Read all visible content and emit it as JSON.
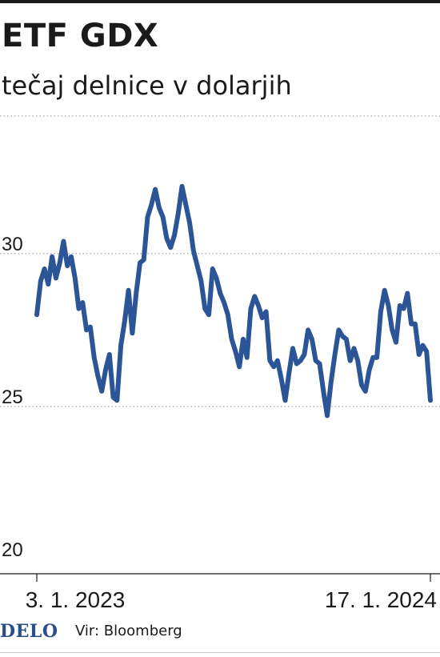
{
  "header": {
    "title": "ETF GDX",
    "subtitle": "tečaj delnice v dolarjih"
  },
  "footer": {
    "logo": "DELO",
    "source": "Vir: Bloomberg"
  },
  "colors": {
    "line": "#2c5597",
    "grid": "#8a8a8a",
    "text": "#1a1a1a",
    "logo": "#2a4f8a"
  },
  "chart_data": {
    "type": "line",
    "title": "ETF GDX",
    "subtitle": "tečaj delnice v dolarjih",
    "ylim": [
      20,
      34.5
    ],
    "yticks": [
      20,
      25,
      30
    ],
    "ytick_labels": [
      "20",
      "25",
      "30"
    ],
    "xtick_labels": [
      "3. 1. 2023",
      "17. 1. 2024"
    ],
    "grid": true,
    "series": [
      {
        "values": [
          28.0,
          29.1,
          29.5,
          29.0,
          29.9,
          29.2,
          29.7,
          30.4,
          29.6,
          29.9,
          29.2,
          28.2,
          28.4,
          27.5,
          27.6,
          26.6,
          26.0,
          25.5,
          26.2,
          26.7,
          25.3,
          25.2,
          27.0,
          27.8,
          28.8,
          27.4,
          28.7,
          29.7,
          29.8,
          31.2,
          31.6,
          32.1,
          31.5,
          31.2,
          30.5,
          30.2,
          30.6,
          31.3,
          32.2,
          31.6,
          31.0,
          30.1,
          29.6,
          29.1,
          28.2,
          28.0,
          29.5,
          29.2,
          28.7,
          28.4,
          28.0,
          27.2,
          26.8,
          26.3,
          27.2,
          26.6,
          28.2,
          28.6,
          28.3,
          27.9,
          28.1,
          26.5,
          26.3,
          26.5,
          25.9,
          25.2,
          26.1,
          26.9,
          26.4,
          26.5,
          26.7,
          27.5,
          27.2,
          26.5,
          26.4,
          25.5,
          24.7,
          25.8,
          26.7,
          27.5,
          27.3,
          27.2,
          26.5,
          26.9,
          26.5,
          25.7,
          25.5,
          26.2,
          26.6,
          26.6,
          28.1,
          28.8,
          28.3,
          27.5,
          27.1,
          28.3,
          28.2,
          28.7,
          27.7,
          27.7,
          26.7,
          27.0,
          26.8,
          25.2
        ],
        "x_start": "3. 1. 2023",
        "x_end": "17. 1. 2024"
      }
    ]
  }
}
